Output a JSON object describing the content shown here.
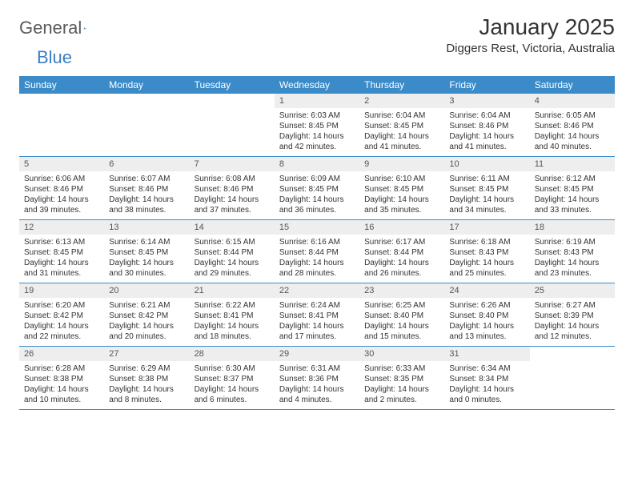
{
  "brand": {
    "part1": "General",
    "part2": "Blue"
  },
  "title": "January 2025",
  "location": "Diggers Rest, Victoria, Australia",
  "colors": {
    "header_bg": "#3b8bc9",
    "header_text": "#ffffff",
    "daynum_bg": "#eeeeee",
    "text": "#333333",
    "rule": "#3b8bc9",
    "brand_gray": "#5a5a5a",
    "brand_blue": "#3b7fc4"
  },
  "dow": [
    "Sunday",
    "Monday",
    "Tuesday",
    "Wednesday",
    "Thursday",
    "Friday",
    "Saturday"
  ],
  "weeks": [
    [
      {
        "n": "",
        "sr": "",
        "ss": "",
        "dl": ""
      },
      {
        "n": "",
        "sr": "",
        "ss": "",
        "dl": ""
      },
      {
        "n": "",
        "sr": "",
        "ss": "",
        "dl": ""
      },
      {
        "n": "1",
        "sr": "Sunrise: 6:03 AM",
        "ss": "Sunset: 8:45 PM",
        "dl": "Daylight: 14 hours and 42 minutes."
      },
      {
        "n": "2",
        "sr": "Sunrise: 6:04 AM",
        "ss": "Sunset: 8:45 PM",
        "dl": "Daylight: 14 hours and 41 minutes."
      },
      {
        "n": "3",
        "sr": "Sunrise: 6:04 AM",
        "ss": "Sunset: 8:46 PM",
        "dl": "Daylight: 14 hours and 41 minutes."
      },
      {
        "n": "4",
        "sr": "Sunrise: 6:05 AM",
        "ss": "Sunset: 8:46 PM",
        "dl": "Daylight: 14 hours and 40 minutes."
      }
    ],
    [
      {
        "n": "5",
        "sr": "Sunrise: 6:06 AM",
        "ss": "Sunset: 8:46 PM",
        "dl": "Daylight: 14 hours and 39 minutes."
      },
      {
        "n": "6",
        "sr": "Sunrise: 6:07 AM",
        "ss": "Sunset: 8:46 PM",
        "dl": "Daylight: 14 hours and 38 minutes."
      },
      {
        "n": "7",
        "sr": "Sunrise: 6:08 AM",
        "ss": "Sunset: 8:46 PM",
        "dl": "Daylight: 14 hours and 37 minutes."
      },
      {
        "n": "8",
        "sr": "Sunrise: 6:09 AM",
        "ss": "Sunset: 8:45 PM",
        "dl": "Daylight: 14 hours and 36 minutes."
      },
      {
        "n": "9",
        "sr": "Sunrise: 6:10 AM",
        "ss": "Sunset: 8:45 PM",
        "dl": "Daylight: 14 hours and 35 minutes."
      },
      {
        "n": "10",
        "sr": "Sunrise: 6:11 AM",
        "ss": "Sunset: 8:45 PM",
        "dl": "Daylight: 14 hours and 34 minutes."
      },
      {
        "n": "11",
        "sr": "Sunrise: 6:12 AM",
        "ss": "Sunset: 8:45 PM",
        "dl": "Daylight: 14 hours and 33 minutes."
      }
    ],
    [
      {
        "n": "12",
        "sr": "Sunrise: 6:13 AM",
        "ss": "Sunset: 8:45 PM",
        "dl": "Daylight: 14 hours and 31 minutes."
      },
      {
        "n": "13",
        "sr": "Sunrise: 6:14 AM",
        "ss": "Sunset: 8:45 PM",
        "dl": "Daylight: 14 hours and 30 minutes."
      },
      {
        "n": "14",
        "sr": "Sunrise: 6:15 AM",
        "ss": "Sunset: 8:44 PM",
        "dl": "Daylight: 14 hours and 29 minutes."
      },
      {
        "n": "15",
        "sr": "Sunrise: 6:16 AM",
        "ss": "Sunset: 8:44 PM",
        "dl": "Daylight: 14 hours and 28 minutes."
      },
      {
        "n": "16",
        "sr": "Sunrise: 6:17 AM",
        "ss": "Sunset: 8:44 PM",
        "dl": "Daylight: 14 hours and 26 minutes."
      },
      {
        "n": "17",
        "sr": "Sunrise: 6:18 AM",
        "ss": "Sunset: 8:43 PM",
        "dl": "Daylight: 14 hours and 25 minutes."
      },
      {
        "n": "18",
        "sr": "Sunrise: 6:19 AM",
        "ss": "Sunset: 8:43 PM",
        "dl": "Daylight: 14 hours and 23 minutes."
      }
    ],
    [
      {
        "n": "19",
        "sr": "Sunrise: 6:20 AM",
        "ss": "Sunset: 8:42 PM",
        "dl": "Daylight: 14 hours and 22 minutes."
      },
      {
        "n": "20",
        "sr": "Sunrise: 6:21 AM",
        "ss": "Sunset: 8:42 PM",
        "dl": "Daylight: 14 hours and 20 minutes."
      },
      {
        "n": "21",
        "sr": "Sunrise: 6:22 AM",
        "ss": "Sunset: 8:41 PM",
        "dl": "Daylight: 14 hours and 18 minutes."
      },
      {
        "n": "22",
        "sr": "Sunrise: 6:24 AM",
        "ss": "Sunset: 8:41 PM",
        "dl": "Daylight: 14 hours and 17 minutes."
      },
      {
        "n": "23",
        "sr": "Sunrise: 6:25 AM",
        "ss": "Sunset: 8:40 PM",
        "dl": "Daylight: 14 hours and 15 minutes."
      },
      {
        "n": "24",
        "sr": "Sunrise: 6:26 AM",
        "ss": "Sunset: 8:40 PM",
        "dl": "Daylight: 14 hours and 13 minutes."
      },
      {
        "n": "25",
        "sr": "Sunrise: 6:27 AM",
        "ss": "Sunset: 8:39 PM",
        "dl": "Daylight: 14 hours and 12 minutes."
      }
    ],
    [
      {
        "n": "26",
        "sr": "Sunrise: 6:28 AM",
        "ss": "Sunset: 8:38 PM",
        "dl": "Daylight: 14 hours and 10 minutes."
      },
      {
        "n": "27",
        "sr": "Sunrise: 6:29 AM",
        "ss": "Sunset: 8:38 PM",
        "dl": "Daylight: 14 hours and 8 minutes."
      },
      {
        "n": "28",
        "sr": "Sunrise: 6:30 AM",
        "ss": "Sunset: 8:37 PM",
        "dl": "Daylight: 14 hours and 6 minutes."
      },
      {
        "n": "29",
        "sr": "Sunrise: 6:31 AM",
        "ss": "Sunset: 8:36 PM",
        "dl": "Daylight: 14 hours and 4 minutes."
      },
      {
        "n": "30",
        "sr": "Sunrise: 6:33 AM",
        "ss": "Sunset: 8:35 PM",
        "dl": "Daylight: 14 hours and 2 minutes."
      },
      {
        "n": "31",
        "sr": "Sunrise: 6:34 AM",
        "ss": "Sunset: 8:34 PM",
        "dl": "Daylight: 14 hours and 0 minutes."
      },
      {
        "n": "",
        "sr": "",
        "ss": "",
        "dl": ""
      }
    ]
  ]
}
